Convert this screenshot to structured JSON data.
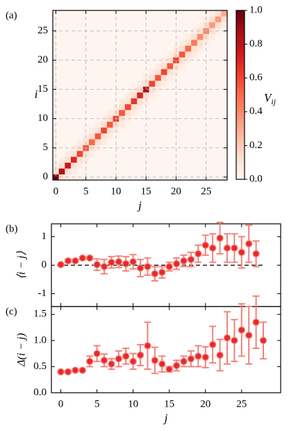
{
  "chart_data": [
    {
      "type": "heatmap",
      "panel_label": "(a)",
      "xlabel": "j",
      "ylabel": "i",
      "xlim": [
        -0.5,
        28.5
      ],
      "ylim": [
        -0.5,
        28.5
      ],
      "xticks": [
        0,
        5,
        10,
        15,
        20,
        25
      ],
      "yticks": [
        0,
        5,
        10,
        15,
        20,
        25
      ],
      "grid": true,
      "colormap": "Reds",
      "clim": [
        0,
        1
      ],
      "colorbar_label": {
        "base": "V",
        "sub": "ij"
      },
      "colorbar_ticks": [
        {
          "value": 0,
          "label": "0.0"
        },
        {
          "value": 0.2,
          "label": "0.2"
        },
        {
          "value": 0.4,
          "label": "0.4"
        },
        {
          "value": 0.6,
          "label": "0.6"
        },
        {
          "value": 0.8,
          "label": "0.8"
        },
        {
          "value": 1,
          "label": "1.0"
        }
      ],
      "z": [
        [
          0.95,
          0.12,
          0.05,
          0,
          0,
          0,
          0,
          0,
          0,
          0,
          0,
          0,
          0,
          0,
          0,
          0,
          0,
          0,
          0,
          0,
          0,
          0,
          0,
          0,
          0,
          0,
          0,
          0,
          0
        ],
        [
          0.12,
          0.85,
          0.12,
          0.05,
          0,
          0,
          0,
          0,
          0,
          0,
          0,
          0,
          0,
          0,
          0,
          0,
          0,
          0,
          0,
          0,
          0,
          0,
          0,
          0,
          0,
          0,
          0,
          0,
          0
        ],
        [
          0.05,
          0.12,
          0.75,
          0.12,
          0.05,
          0,
          0,
          0,
          0,
          0,
          0,
          0,
          0,
          0,
          0,
          0,
          0,
          0,
          0,
          0,
          0,
          0,
          0,
          0,
          0,
          0,
          0,
          0,
          0
        ],
        [
          0,
          0.05,
          0.12,
          0.7,
          0.12,
          0.05,
          0,
          0,
          0,
          0,
          0,
          0,
          0,
          0,
          0,
          0,
          0,
          0,
          0,
          0,
          0,
          0,
          0,
          0,
          0,
          0,
          0,
          0,
          0
        ],
        [
          0,
          0,
          0.05,
          0.12,
          0.6,
          0.12,
          0.05,
          0,
          0,
          0,
          0,
          0,
          0,
          0,
          0,
          0,
          0,
          0,
          0,
          0,
          0,
          0,
          0,
          0,
          0,
          0,
          0,
          0,
          0
        ],
        [
          0,
          0,
          0,
          0.05,
          0.12,
          0.55,
          0.12,
          0.05,
          0,
          0,
          0,
          0,
          0,
          0,
          0,
          0,
          0,
          0,
          0,
          0,
          0,
          0,
          0,
          0,
          0,
          0,
          0,
          0,
          0
        ],
        [
          0,
          0,
          0,
          0,
          0.05,
          0.12,
          0.5,
          0.12,
          0.05,
          0,
          0,
          0,
          0,
          0,
          0,
          0,
          0,
          0,
          0,
          0,
          0,
          0,
          0,
          0,
          0,
          0,
          0,
          0,
          0
        ],
        [
          0,
          0,
          0,
          0,
          0,
          0.05,
          0.12,
          0.55,
          0.12,
          0.05,
          0,
          0,
          0,
          0,
          0,
          0,
          0,
          0,
          0,
          0,
          0,
          0,
          0,
          0,
          0,
          0,
          0,
          0,
          0
        ],
        [
          0,
          0,
          0,
          0,
          0,
          0,
          0.05,
          0.12,
          0.6,
          0.12,
          0.05,
          0,
          0,
          0,
          0,
          0,
          0,
          0,
          0,
          0,
          0,
          0,
          0,
          0,
          0,
          0,
          0,
          0,
          0
        ],
        [
          0,
          0,
          0,
          0,
          0,
          0,
          0,
          0.05,
          0.12,
          0.55,
          0.12,
          0.05,
          0,
          0,
          0,
          0,
          0,
          0,
          0,
          0,
          0,
          0,
          0,
          0,
          0,
          0,
          0,
          0,
          0
        ],
        [
          0,
          0,
          0,
          0,
          0,
          0,
          0,
          0,
          0.05,
          0.12,
          0.6,
          0.12,
          0.05,
          0,
          0,
          0,
          0,
          0,
          0,
          0,
          0,
          0,
          0,
          0,
          0,
          0,
          0,
          0,
          0
        ],
        [
          0,
          0,
          0,
          0,
          0,
          0,
          0,
          0,
          0,
          0.05,
          0.12,
          0.55,
          0.12,
          0.05,
          0,
          0,
          0,
          0,
          0,
          0,
          0,
          0,
          0,
          0,
          0,
          0,
          0,
          0,
          0
        ],
        [
          0,
          0,
          0,
          0,
          0,
          0,
          0,
          0,
          0,
          0,
          0.05,
          0.12,
          0.6,
          0.12,
          0.05,
          0,
          0,
          0,
          0,
          0,
          0,
          0,
          0,
          0,
          0,
          0,
          0,
          0,
          0
        ],
        [
          0,
          0,
          0,
          0,
          0,
          0,
          0,
          0,
          0,
          0,
          0,
          0.05,
          0.12,
          0.65,
          0.12,
          0.05,
          0,
          0,
          0,
          0,
          0,
          0,
          0,
          0,
          0,
          0,
          0,
          0,
          0
        ],
        [
          0,
          0,
          0,
          0,
          0,
          0,
          0,
          0,
          0,
          0,
          0,
          0,
          0.05,
          0.12,
          0.7,
          0.12,
          0.05,
          0,
          0,
          0,
          0,
          0,
          0,
          0,
          0,
          0,
          0,
          0,
          0
        ],
        [
          0,
          0,
          0,
          0,
          0,
          0,
          0,
          0,
          0,
          0,
          0,
          0,
          0,
          0.05,
          0.12,
          0.85,
          0.12,
          0.05,
          0,
          0,
          0,
          0,
          0,
          0,
          0,
          0,
          0,
          0,
          0
        ],
        [
          0,
          0,
          0,
          0,
          0,
          0,
          0,
          0,
          0,
          0,
          0,
          0,
          0,
          0,
          0.05,
          0.12,
          0.6,
          0.12,
          0.05,
          0,
          0,
          0,
          0,
          0,
          0,
          0,
          0,
          0,
          0
        ],
        [
          0,
          0,
          0,
          0,
          0,
          0,
          0,
          0,
          0,
          0,
          0,
          0,
          0,
          0,
          0,
          0.05,
          0.12,
          0.55,
          0.12,
          0.05,
          0,
          0,
          0,
          0,
          0,
          0,
          0,
          0,
          0
        ],
        [
          0,
          0,
          0,
          0,
          0,
          0,
          0,
          0,
          0,
          0,
          0,
          0,
          0,
          0,
          0,
          0,
          0.05,
          0.12,
          0.6,
          0.12,
          0.05,
          0,
          0,
          0,
          0,
          0,
          0,
          0,
          0
        ],
        [
          0,
          0,
          0,
          0,
          0,
          0,
          0,
          0,
          0,
          0,
          0,
          0,
          0,
          0,
          0,
          0,
          0,
          0.05,
          0.12,
          0.55,
          0.12,
          0.05,
          0,
          0,
          0,
          0,
          0,
          0,
          0
        ],
        [
          0,
          0,
          0,
          0,
          0,
          0,
          0,
          0,
          0,
          0,
          0,
          0,
          0,
          0,
          0,
          0,
          0,
          0,
          0.05,
          0.12,
          0.6,
          0.12,
          0.05,
          0,
          0,
          0,
          0,
          0,
          0
        ],
        [
          0,
          0,
          0,
          0,
          0,
          0,
          0,
          0,
          0,
          0,
          0,
          0,
          0,
          0,
          0,
          0,
          0,
          0,
          0,
          0.05,
          0.12,
          0.55,
          0.12,
          0.05,
          0,
          0,
          0,
          0,
          0
        ],
        [
          0,
          0,
          0,
          0,
          0,
          0,
          0,
          0,
          0,
          0,
          0,
          0,
          0,
          0,
          0,
          0,
          0,
          0,
          0,
          0,
          0.05,
          0.12,
          0.5,
          0.12,
          0.05,
          0,
          0,
          0,
          0
        ],
        [
          0,
          0,
          0,
          0,
          0,
          0,
          0,
          0,
          0,
          0,
          0,
          0,
          0,
          0,
          0,
          0,
          0,
          0,
          0,
          0,
          0,
          0.05,
          0.12,
          0.45,
          0.12,
          0.05,
          0,
          0,
          0
        ],
        [
          0,
          0,
          0,
          0,
          0,
          0,
          0,
          0,
          0,
          0,
          0,
          0,
          0,
          0,
          0,
          0,
          0,
          0,
          0,
          0,
          0,
          0,
          0.05,
          0.12,
          0.4,
          0.12,
          0.05,
          0,
          0
        ],
        [
          0,
          0,
          0,
          0,
          0,
          0,
          0,
          0,
          0,
          0,
          0,
          0,
          0,
          0,
          0,
          0,
          0,
          0,
          0,
          0,
          0,
          0,
          0,
          0.05,
          0.12,
          0.4,
          0.12,
          0.05,
          0
        ],
        [
          0,
          0,
          0,
          0,
          0,
          0,
          0,
          0,
          0,
          0,
          0,
          0,
          0,
          0,
          0,
          0,
          0,
          0,
          0,
          0,
          0,
          0,
          0,
          0,
          0.05,
          0.12,
          0.35,
          0.12,
          0.05
        ],
        [
          0,
          0,
          0,
          0,
          0,
          0,
          0,
          0,
          0,
          0,
          0,
          0,
          0,
          0,
          0,
          0,
          0,
          0,
          0,
          0,
          0,
          0,
          0,
          0,
          0,
          0.05,
          0.12,
          0.35,
          0.12
        ],
        [
          0,
          0,
          0,
          0,
          0,
          0,
          0,
          0,
          0,
          0,
          0,
          0,
          0,
          0,
          0,
          0,
          0,
          0,
          0,
          0,
          0,
          0,
          0,
          0,
          0,
          0,
          0.05,
          0.12,
          0.3
        ]
      ]
    },
    {
      "type": "errorbar",
      "panel_label": "(b)",
      "ylabel": "⟨i − j⟩",
      "xlim": [
        -1.3,
        30.4
      ],
      "ylim": [
        -1.45,
        1.45
      ],
      "xticks": [
        0,
        5,
        10,
        15,
        20,
        25
      ],
      "xtick_labels": false,
      "yticks": [
        -1,
        0,
        1
      ],
      "hline": 0,
      "color": "#e8282b",
      "ecolor": "#f4817a",
      "x": [
        0,
        1,
        2,
        3,
        4,
        5,
        6,
        7,
        8,
        9,
        10,
        11,
        12,
        13,
        14,
        15,
        16,
        17,
        18,
        19,
        20,
        21,
        22,
        23,
        24,
        25,
        26,
        27
      ],
      "values": [
        0.02,
        0.15,
        0.15,
        0.25,
        0.25,
        0.02,
        -0.05,
        0.1,
        0.12,
        0.05,
        0.12,
        -0.1,
        -0.05,
        -0.3,
        -0.25,
        -0.05,
        0.05,
        0.15,
        0.2,
        0.4,
        0.7,
        0.6,
        0.95,
        0.6,
        0.6,
        0.45,
        0.75,
        0.4
      ],
      "errors": [
        0.02,
        0.05,
        0.05,
        0.05,
        0.05,
        0.2,
        0.25,
        0.2,
        0.2,
        0.25,
        0.25,
        0.3,
        0.3,
        0.25,
        0.2,
        0.15,
        0.2,
        0.2,
        0.25,
        0.3,
        0.35,
        0.5,
        0.55,
        0.5,
        0.5,
        0.55,
        0.65,
        0.45
      ]
    },
    {
      "type": "errorbar",
      "panel_label": "(c)",
      "xlabel": "j",
      "ylabel": "Δ(i − j)",
      "xlim": [
        -1.3,
        30.4
      ],
      "ylim": [
        0,
        1.65
      ],
      "xticks": [
        0,
        5,
        10,
        15,
        20,
        25
      ],
      "yticks": [
        {
          "value": 0,
          "label": "0.0"
        },
        {
          "value": 0.5,
          "label": "0.5"
        },
        {
          "value": 1,
          "label": "1.0"
        },
        {
          "value": 1.5,
          "label": "1.5"
        }
      ],
      "color": "#e8282b",
      "ecolor": "#f4817a",
      "x": [
        0,
        1,
        2,
        3,
        4,
        5,
        6,
        7,
        8,
        9,
        10,
        11,
        12,
        13,
        14,
        15,
        16,
        17,
        18,
        19,
        20,
        21,
        22,
        23,
        24,
        25,
        26,
        27,
        28
      ],
      "values": [
        0.4,
        0.4,
        0.43,
        0.43,
        0.6,
        0.75,
        0.62,
        0.55,
        0.65,
        0.7,
        0.6,
        0.72,
        0.9,
        0.62,
        0.55,
        0.45,
        0.52,
        0.6,
        0.65,
        0.7,
        0.68,
        0.92,
        0.72,
        1.05,
        1.0,
        1.2,
        1.1,
        1.35,
        1.0
      ],
      "errors": [
        0.02,
        0.02,
        0.02,
        0.02,
        0.1,
        0.15,
        0.12,
        0.1,
        0.15,
        0.15,
        0.15,
        0.2,
        0.45,
        0.25,
        0.15,
        0.05,
        0.1,
        0.1,
        0.15,
        0.2,
        0.2,
        0.35,
        0.3,
        0.5,
        0.4,
        0.5,
        0.55,
        0.5,
        0.35
      ]
    }
  ]
}
